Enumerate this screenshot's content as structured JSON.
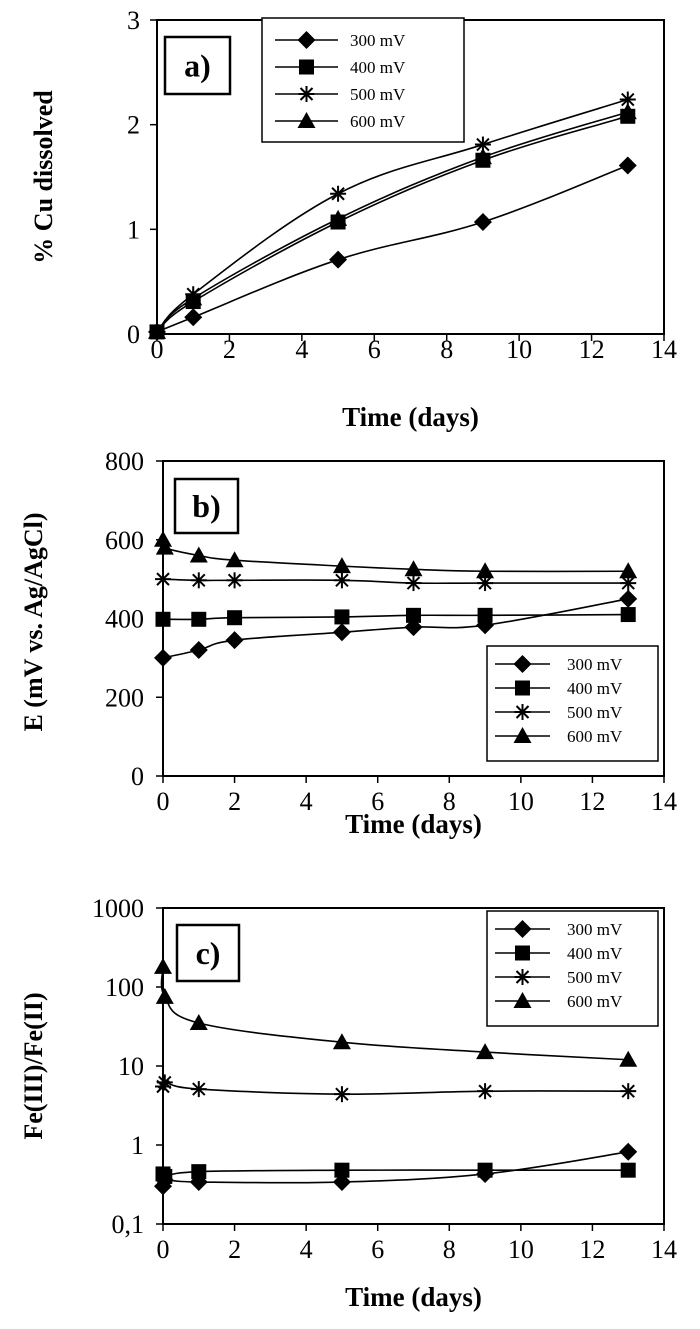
{
  "chart_data": [
    {
      "type": "line",
      "panel_label": "a)",
      "xlabel": "Time (days)",
      "ylabel": "% Cu dissolved",
      "xlim": [
        0,
        14
      ],
      "ylim": [
        0,
        3
      ],
      "yscale": "linear",
      "x_ticks": [
        "0",
        "2",
        "4",
        "6",
        "8",
        "10",
        "12",
        "14"
      ],
      "y_ticks": [
        "0",
        "1",
        "2",
        "3"
      ],
      "legend_position": "top-center",
      "grid": false,
      "series": [
        {
          "name": "300 mV",
          "marker": "diamond",
          "x": [
            0,
            1,
            5,
            9,
            13
          ],
          "y": [
            0.02,
            0.16,
            0.71,
            1.07,
            1.61
          ]
        },
        {
          "name": "400 mV",
          "marker": "square",
          "x": [
            0,
            1,
            5,
            9,
            13
          ],
          "y": [
            0.02,
            0.31,
            1.07,
            1.66,
            2.08
          ]
        },
        {
          "name": "500 mV",
          "marker": "asterisk",
          "x": [
            0,
            1,
            5,
            9,
            13
          ],
          "y": [
            0.02,
            0.38,
            1.34,
            1.81,
            2.24
          ]
        },
        {
          "name": "600 mV",
          "marker": "triangle",
          "x": [
            0,
            1,
            5,
            9,
            13
          ],
          "y": [
            0.02,
            0.34,
            1.1,
            1.69,
            2.12
          ]
        }
      ]
    },
    {
      "type": "line",
      "panel_label": "b)",
      "xlabel": "Time (days)",
      "ylabel": "E (mV vs. Ag/AgCl)",
      "xlim": [
        0,
        14
      ],
      "ylim": [
        0,
        800
      ],
      "yscale": "linear",
      "x_ticks": [
        "0",
        "2",
        "4",
        "6",
        "8",
        "10",
        "12",
        "14"
      ],
      "y_ticks": [
        "0",
        "200",
        "400",
        "600",
        "800"
      ],
      "legend_position": "bottom-right",
      "grid": false,
      "series": [
        {
          "name": "300 mV",
          "marker": "diamond",
          "x": [
            0,
            1,
            2,
            5,
            7,
            9,
            13
          ],
          "y": [
            300,
            320,
            345,
            365,
            378,
            383,
            450
          ]
        },
        {
          "name": "400 mV",
          "marker": "square",
          "x": [
            0,
            1,
            2,
            5,
            7,
            9,
            13
          ],
          "y": [
            398,
            398,
            402,
            404,
            408,
            408,
            410
          ]
        },
        {
          "name": "500 mV",
          "marker": "asterisk",
          "x": [
            0,
            1,
            2,
            5,
            7,
            9,
            13
          ],
          "y": [
            500,
            497,
            497,
            497,
            490,
            490,
            490
          ]
        },
        {
          "name": "600 mV",
          "marker": "triangle",
          "x": [
            0,
            0.05,
            1,
            2,
            5,
            7,
            9,
            13
          ],
          "y": [
            600,
            580,
            560,
            548,
            533,
            525,
            520,
            520
          ]
        }
      ]
    },
    {
      "type": "line",
      "panel_label": "c)",
      "xlabel": "Time (days)",
      "ylabel": "Fe(III)/Fe(II)",
      "xlim": [
        0,
        14
      ],
      "ylim": [
        0.1,
        1000
      ],
      "yscale": "log",
      "x_ticks": [
        "0",
        "2",
        "4",
        "6",
        "8",
        "10",
        "12",
        "14"
      ],
      "y_ticks": [
        "0,1",
        "1",
        "10",
        "100",
        "1000"
      ],
      "legend_position": "top-right",
      "grid": false,
      "series": [
        {
          "name": "300 mV",
          "marker": "diamond",
          "x": [
            0,
            0.05,
            1,
            5,
            9,
            13
          ],
          "y": [
            0.3,
            0.36,
            0.34,
            0.34,
            0.43,
            0.82
          ]
        },
        {
          "name": "400 mV",
          "marker": "square",
          "x": [
            0,
            0.05,
            1,
            5,
            9,
            13
          ],
          "y": [
            0.43,
            0.4,
            0.46,
            0.48,
            0.48,
            0.48
          ]
        },
        {
          "name": "500 mV",
          "marker": "asterisk",
          "x": [
            0,
            0.05,
            1,
            5,
            9,
            13
          ],
          "y": [
            5.5,
            6.2,
            5.1,
            4.4,
            4.8,
            4.8
          ]
        },
        {
          "name": "600 mV",
          "marker": "triangle",
          "x": [
            0,
            0.05,
            1,
            5,
            9,
            13
          ],
          "y": [
            180,
            75,
            35,
            20,
            15,
            12
          ]
        }
      ]
    }
  ]
}
